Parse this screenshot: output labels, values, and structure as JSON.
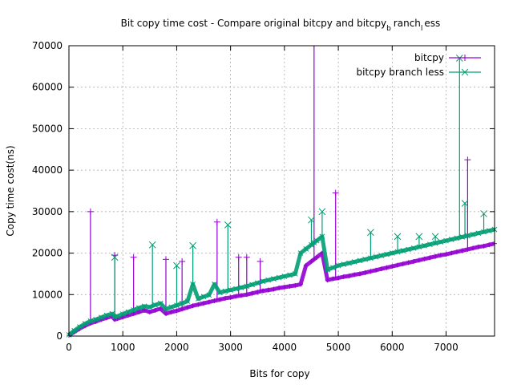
{
  "chart_data": {
    "type": "line",
    "title": "Bit copy time cost - Compare original bitcpy and bitcpy",
    "title_sub": "b",
    "title_mid": "ranch",
    "title_sub2": "l",
    "title_end": "ess",
    "xlabel": "Bits for copy",
    "ylabel": "Copy time cost(ns)",
    "xlim": [
      0,
      7900
    ],
    "ylim": [
      0,
      70000
    ],
    "x_ticks": [
      0,
      1000,
      2000,
      3000,
      4000,
      5000,
      6000,
      7000
    ],
    "y_ticks": [
      0,
      10000,
      20000,
      30000,
      40000,
      50000,
      60000,
      70000
    ],
    "x_tick_labels": [
      "0",
      "1000",
      "2000",
      "3000",
      "4000",
      "5000",
      "6000",
      "7000"
    ],
    "y_tick_labels": [
      "0",
      "10000",
      "20000",
      "30000",
      "40000",
      "50000",
      "60000",
      "70000"
    ],
    "grid": true,
    "legend_position": "top-right",
    "series": [
      {
        "name": "bitcpy",
        "color": "#9400d3",
        "marker": "plus",
        "x": [
          0,
          100,
          200,
          300,
          400,
          500,
          600,
          700,
          800,
          850,
          900,
          1000,
          1100,
          1200,
          1300,
          1400,
          1500,
          1600,
          1700,
          1800,
          1900,
          2000,
          2100,
          2200,
          2300,
          2400,
          2500,
          2600,
          2700,
          2800,
          2900,
          3000,
          3100,
          3200,
          3300,
          3400,
          3500,
          3600,
          3700,
          3800,
          3900,
          4000,
          4100,
          4200,
          4300,
          4400,
          4500,
          4550,
          4600,
          4700,
          4800,
          4900,
          5000,
          5100,
          5200,
          5300,
          5400,
          5500,
          5600,
          5700,
          5800,
          5900,
          6000,
          6100,
          6200,
          6300,
          6400,
          6500,
          6600,
          6700,
          6800,
          6900,
          7000,
          7100,
          7200,
          7300,
          7400,
          7500,
          7600,
          7700,
          7800,
          7900
        ],
        "y": [
          200,
          1000,
          1800,
          2500,
          3100,
          3500,
          4000,
          4400,
          4800,
          4000,
          4200,
          4600,
          5000,
          5400,
          5800,
          6200,
          5800,
          6200,
          6600,
          5400,
          5800,
          6100,
          6500,
          6900,
          7300,
          7600,
          7900,
          8200,
          8500,
          8800,
          9100,
          9300,
          9600,
          9800,
          10000,
          10300,
          10600,
          10900,
          11100,
          11300,
          11600,
          11800,
          12000,
          12200,
          12500,
          17000,
          18000,
          18500,
          19000,
          20000,
          13500,
          13800,
          14000,
          14300,
          14500,
          14800,
          15000,
          15300,
          15600,
          15900,
          16200,
          16500,
          16800,
          17100,
          17400,
          17700,
          18000,
          18300,
          18600,
          18900,
          19200,
          19500,
          19700,
          20000,
          20300,
          20600,
          20900,
          21200,
          21500,
          21700,
          22000,
          22300
        ],
        "spikes": [
          [
            400,
            30000
          ],
          [
            850,
            19500
          ],
          [
            1200,
            19000
          ],
          [
            1800,
            18500
          ],
          [
            2100,
            18000
          ],
          [
            2750,
            27500
          ],
          [
            3150,
            19000
          ],
          [
            3300,
            19000
          ],
          [
            3550,
            18000
          ],
          [
            4550,
            70000
          ],
          [
            4950,
            34500
          ],
          [
            7400,
            42500
          ]
        ]
      },
      {
        "name": "bitcpy branch less",
        "color": "#009e73",
        "marker": "cross",
        "x": [
          0,
          100,
          200,
          300,
          400,
          500,
          600,
          700,
          800,
          850,
          900,
          1000,
          1100,
          1200,
          1300,
          1400,
          1500,
          1600,
          1700,
          1800,
          1900,
          2000,
          2100,
          2200,
          2300,
          2400,
          2500,
          2600,
          2700,
          2800,
          2900,
          3000,
          3100,
          3200,
          3300,
          3400,
          3500,
          3600,
          3700,
          3800,
          3900,
          4000,
          4100,
          4200,
          4300,
          4400,
          4500,
          4550,
          4600,
          4700,
          4800,
          4900,
          5000,
          5100,
          5200,
          5300,
          5400,
          5500,
          5600,
          5700,
          5800,
          5900,
          6000,
          6100,
          6200,
          6300,
          6400,
          6500,
          6600,
          6700,
          6800,
          6900,
          7000,
          7100,
          7200,
          7300,
          7400,
          7500,
          7600,
          7700,
          7800,
          7900
        ],
        "y": [
          300,
          1300,
          2200,
          3000,
          3600,
          4000,
          4500,
          5000,
          5400,
          4600,
          4800,
          5300,
          5800,
          6300,
          6800,
          7200,
          7000,
          7500,
          7900,
          6500,
          7000,
          7400,
          7900,
          8400,
          12500,
          9000,
          9500,
          9900,
          12500,
          10500,
          10800,
          11100,
          11400,
          11700,
          12000,
          12400,
          12800,
          13200,
          13500,
          13800,
          14100,
          14400,
          14700,
          15000,
          20000,
          21000,
          22000,
          22500,
          23000,
          24000,
          16000,
          16500,
          17000,
          17300,
          17600,
          17900,
          18200,
          18500,
          18800,
          19100,
          19400,
          19700,
          20000,
          20300,
          20600,
          20900,
          21200,
          21500,
          21800,
          22100,
          22400,
          22700,
          23000,
          23300,
          23600,
          23900,
          24200,
          24500,
          24800,
          25100,
          25400,
          25700
        ],
        "spikes": [
          [
            850,
            19000
          ],
          [
            1550,
            22000
          ],
          [
            2000,
            17000
          ],
          [
            2300,
            21800
          ],
          [
            2950,
            26800
          ],
          [
            4500,
            28000
          ],
          [
            4700,
            30000
          ],
          [
            5600,
            25000
          ],
          [
            6100,
            24000
          ],
          [
            6500,
            24000
          ],
          [
            6800,
            24000
          ],
          [
            7250,
            67000
          ],
          [
            7350,
            32000
          ],
          [
            7700,
            29500
          ]
        ]
      }
    ]
  }
}
